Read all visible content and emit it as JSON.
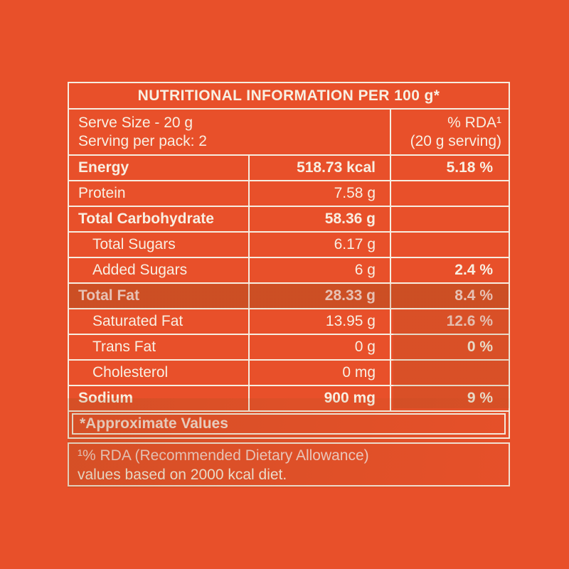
{
  "page": {
    "background_color": "#E8502A",
    "text_color": "#F8EFE2",
    "border_color": "#F7EDE0"
  },
  "table": {
    "title": "NUTRITIONAL INFORMATION PER 100 g*",
    "serve": {
      "line1": "Serve Size - 20 g",
      "line2": "Serving per pack: 2"
    },
    "rda_header": {
      "line1": "% RDA¹",
      "line2": "(20 g serving)"
    },
    "rows": [
      {
        "label": "Energy",
        "value": "518.73 kcal",
        "rda": "5.18 %"
      },
      {
        "label": "Protein",
        "value": "7.58 g",
        "rda": ""
      },
      {
        "label": "Total Carbohydrate",
        "value": "58.36 g",
        "rda": ""
      },
      {
        "label": "Total Sugars",
        "value": "6.17 g",
        "rda": ""
      },
      {
        "label": "Added Sugars",
        "value": "6 g",
        "rda": "2.4 %"
      },
      {
        "label": "Total Fat",
        "value": "28.33 g",
        "rda": "8.4 %"
      },
      {
        "label": "Saturated Fat",
        "value": "13.95 g",
        "rda": "12.6 %"
      },
      {
        "label": "Trans Fat",
        "value": "0 g",
        "rda": "0 %"
      },
      {
        "label": "Cholesterol",
        "value": "0 mg",
        "rda": ""
      },
      {
        "label": "Sodium",
        "value": "900 mg",
        "rda": "9 %"
      }
    ],
    "footer_note": "*Approximate Values"
  },
  "footnote": {
    "line1": "¹% RDA (Recommended Dietary Allowance)",
    "line2": "values based on 2000 kcal diet."
  }
}
